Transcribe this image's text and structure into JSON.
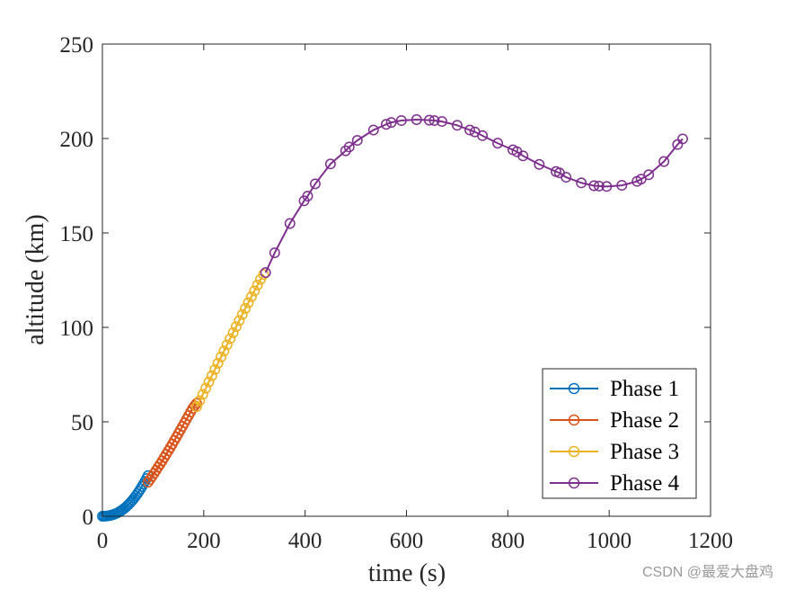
{
  "chart_data": {
    "type": "line",
    "title": "",
    "xlabel": "time (s)",
    "ylabel": "altitude (km)",
    "xlim": [
      0,
      1200
    ],
    "ylim": [
      0,
      250
    ],
    "xticks": [
      0,
      200,
      400,
      600,
      800,
      1000,
      1200
    ],
    "yticks": [
      0,
      50,
      100,
      150,
      200,
      250
    ],
    "xtick_labels": [
      "0",
      "200",
      "400",
      "600",
      "800",
      "1000",
      "1200"
    ],
    "ytick_labels": [
      "0",
      "50",
      "100",
      "150",
      "200",
      "250"
    ],
    "grid": false,
    "legend_position": "bottom-right",
    "marker": "circle",
    "series": [
      {
        "name": "Phase 1",
        "color": "#0072BD",
        "x": [
          0,
          3,
          6,
          9,
          12,
          15,
          18,
          21,
          24,
          27,
          30,
          33,
          36,
          39,
          42,
          45,
          48,
          51,
          54,
          57,
          60,
          63,
          66,
          69,
          72,
          75,
          78,
          81,
          84,
          87,
          90
        ],
        "y": [
          0.0,
          0.02,
          0.06,
          0.14,
          0.25,
          0.4,
          0.6,
          0.84,
          1.12,
          1.45,
          1.84,
          2.27,
          2.76,
          3.3,
          3.9,
          4.56,
          5.27,
          6.04,
          6.87,
          7.76,
          8.71,
          9.72,
          10.79,
          11.92,
          13.11,
          14.36,
          15.67,
          17.04,
          18.47,
          19.96,
          21.5
        ]
      },
      {
        "name": "Phase 2",
        "color": "#D95319",
        "x": [
          90,
          94,
          98,
          102,
          106,
          110,
          114,
          118,
          122,
          126,
          130,
          134,
          138,
          142,
          146,
          150,
          154,
          158,
          162,
          166,
          170,
          174,
          178,
          182,
          186
        ],
        "y": [
          18.0,
          19.5,
          21.1,
          22.7,
          24.3,
          26.0,
          27.6,
          29.3,
          31.1,
          32.8,
          34.6,
          36.4,
          38.2,
          40.1,
          41.9,
          43.8,
          45.7,
          47.6,
          49.5,
          51.4,
          53.3,
          55.2,
          57.1,
          58.5,
          59.8
        ]
      },
      {
        "name": "Phase 3",
        "color": "#EDB120",
        "x": [
          186,
          192,
          198,
          204,
          210,
          216,
          222,
          228,
          234,
          240,
          246,
          252,
          258,
          264,
          270,
          276,
          282,
          288,
          294,
          300,
          306,
          312,
          318
        ],
        "y": [
          58.0,
          61.2,
          64.5,
          67.8,
          71.1,
          74.4,
          77.7,
          81.0,
          84.3,
          87.5,
          90.8,
          94.0,
          97.2,
          100.4,
          103.6,
          106.8,
          110.0,
          113.1,
          116.2,
          119.3,
          122.4,
          125.4,
          128.0
        ]
      },
      {
        "name": "Phase 4",
        "color": "#7E2F8E",
        "x": [
          322,
          340,
          370,
          398,
          405,
          420,
          450,
          480,
          487,
          503,
          535,
          560,
          570,
          590,
          620,
          645,
          655,
          670,
          700,
          725,
          735,
          750,
          780,
          810,
          818,
          830,
          862,
          895,
          902,
          915,
          945,
          970,
          980,
          995,
          1025,
          1055,
          1063,
          1078,
          1108,
          1135,
          1145
        ],
        "y": [
          129.0,
          139.5,
          155.0,
          167.0,
          169.5,
          176.0,
          186.5,
          193.5,
          195.5,
          199.0,
          204.5,
          207.5,
          208.5,
          209.5,
          210.0,
          209.7,
          209.5,
          209.0,
          207.0,
          204.5,
          203.5,
          201.5,
          197.5,
          194.0,
          193.0,
          190.8,
          186.3,
          182.5,
          181.8,
          179.5,
          176.5,
          175.0,
          174.8,
          174.6,
          175.2,
          177.3,
          178.5,
          180.8,
          187.8,
          196.8,
          199.8
        ]
      }
    ]
  },
  "watermark": "CSDN @最爱大盘鸡"
}
